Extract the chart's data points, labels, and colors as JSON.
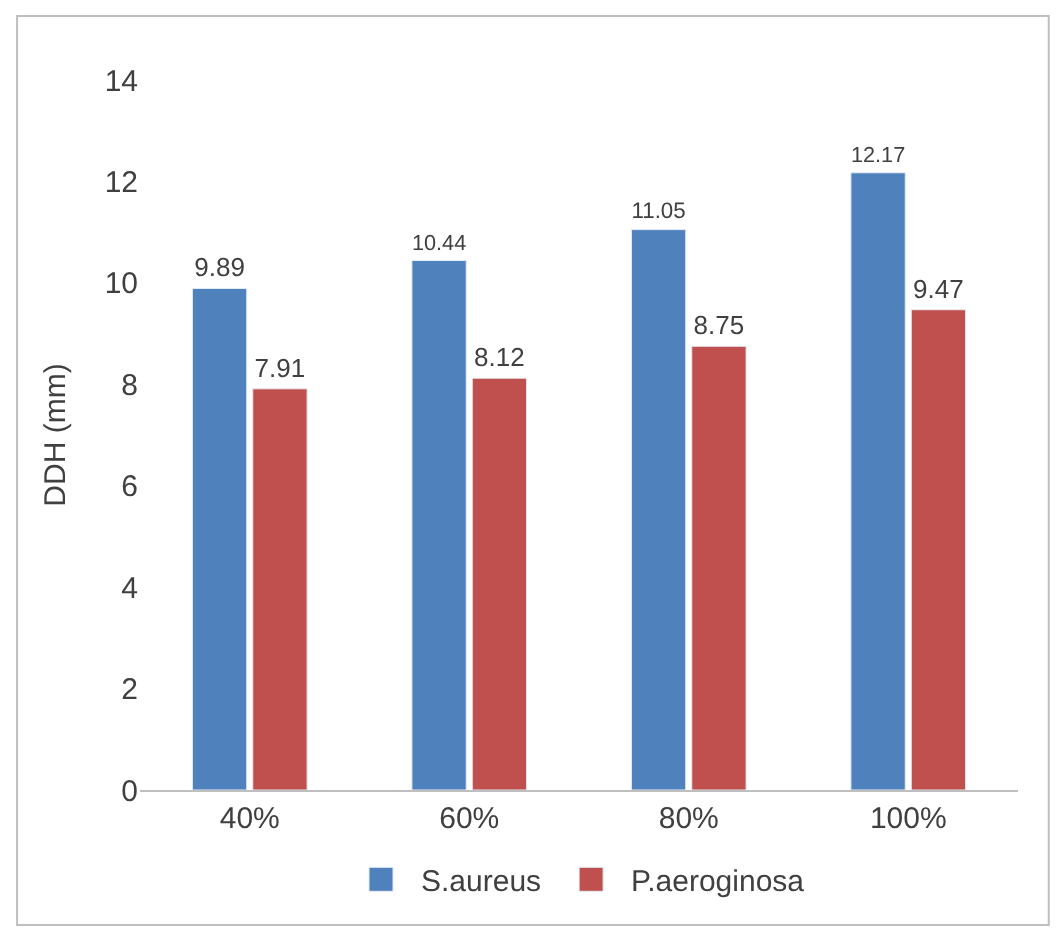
{
  "chart_data": {
    "type": "bar",
    "ylabel": "DDH (mm)",
    "categories": [
      "40%",
      "60%",
      "80%",
      "100%"
    ],
    "series": [
      {
        "name": "S.aureus",
        "color": "#4f81bd",
        "values": [
          9.89,
          10.44,
          11.05,
          12.17
        ]
      },
      {
        "name": "P.aeroginosa",
        "color": "#c0504d",
        "values": [
          7.91,
          8.12,
          8.75,
          9.47
        ]
      }
    ],
    "ylim": [
      0,
      14
    ],
    "yticks": [
      0,
      2,
      4,
      6,
      8,
      10,
      12,
      14
    ],
    "data_labels": true,
    "legend": "bottom",
    "grid": false
  }
}
